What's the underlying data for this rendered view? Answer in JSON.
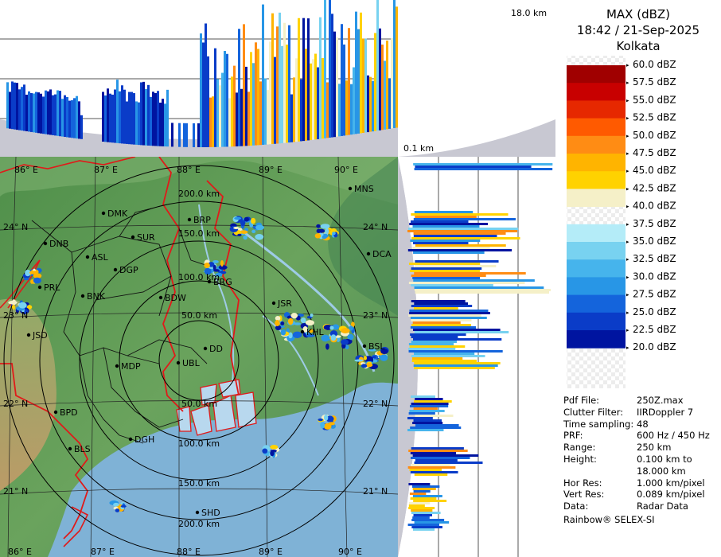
{
  "header": {
    "product": "MAX (dBZ)",
    "datetime": "18:42 / 21-Sep-2025",
    "station": "Kolkata"
  },
  "profile_labels": {
    "max_height": "18.0 km",
    "min_height": "0.1 km"
  },
  "map": {
    "lon_labels": [
      "86° E",
      "87° E",
      "88° E",
      "89° E",
      "90° E"
    ],
    "lat_labels": [
      "24° N",
      "23° N",
      "22° N",
      "21° N"
    ],
    "range_rings": [
      "50.0 km",
      "100.0 km",
      "150.0 km",
      "200.0 km"
    ],
    "cities": [
      "DMK",
      "BRP",
      "MNS",
      "DNB",
      "SUR",
      "ASL",
      "DGP",
      "DCA",
      "PRL",
      "BNK",
      "BDW",
      "BRG",
      "JSR",
      "JSD",
      "KHL",
      "DD",
      "BSL",
      "MDP",
      "UBL",
      "BPD",
      "DGH",
      "BLS",
      "SHD"
    ],
    "colors": {
      "land_low": "#5f9a55",
      "land_high": "#c9a56a",
      "sea": "#7fb2d6",
      "border": "#e01a1a",
      "river": "#9ecbe6"
    }
  },
  "legend": {
    "entries": [
      "60.0 dBZ",
      "57.5 dBZ",
      "55.0 dBZ",
      "52.5 dBZ",
      "50.0 dBZ",
      "47.5 dBZ",
      "45.0 dBZ",
      "42.5 dBZ",
      "40.0 dBZ",
      "37.5 dBZ",
      "35.0 dBZ",
      "32.5 dBZ",
      "30.0 dBZ",
      "27.5 dBZ",
      "25.0 dBZ",
      "22.5 dBZ",
      "20.0 dBZ"
    ],
    "colors": [
      "#ffffff",
      "#a00000",
      "#c80000",
      "#e62800",
      "#ff5a00",
      "#ff8c14",
      "#ffb400",
      "#ffd200",
      "#f5f0c8",
      "#ffffff",
      "#b4ecf8",
      "#78d2f0",
      "#46b4ec",
      "#2896e6",
      "#1464dc",
      "#0a3cc8",
      "#0014a0"
    ]
  },
  "info": [
    {
      "label": "Pdf File:",
      "value": "250Z.max"
    },
    {
      "label": "Clutter Filter:",
      "value": "IIRDoppler 7"
    },
    {
      "label": "Time sampling:",
      "value": "48"
    },
    {
      "label": "PRF:",
      "value": "600 Hz / 450 Hz"
    },
    {
      "label": "Range:",
      "value": "250 km"
    },
    {
      "label": "Height:",
      "value": "0.100 km to"
    },
    {
      "label": "",
      "value": "18.000 km"
    },
    {
      "label": "Hor Res:",
      "value": "1.000 km/pixel"
    },
    {
      "label": "Vert Res:",
      "value": "0.089 km/pixel"
    },
    {
      "label": "Data:",
      "value": "Radar Data"
    }
  ],
  "footer": "Rainbow® SELEX-SI"
}
